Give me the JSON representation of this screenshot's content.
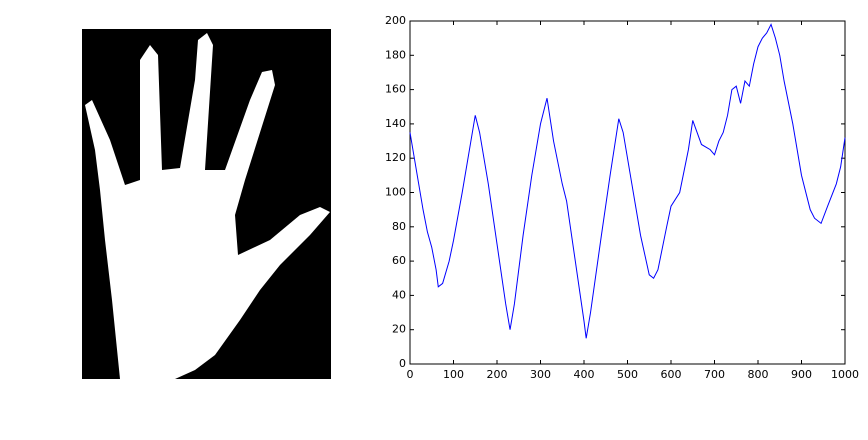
{
  "chart_data": {
    "type": "line",
    "x": [
      0,
      10,
      20,
      30,
      40,
      50,
      60,
      65,
      75,
      90,
      100,
      120,
      140,
      150,
      160,
      180,
      200,
      220,
      230,
      240,
      260,
      280,
      300,
      315,
      330,
      350,
      360,
      380,
      400,
      405,
      415,
      440,
      460,
      480,
      490,
      510,
      530,
      550,
      560,
      570,
      590,
      600,
      620,
      640,
      650,
      660,
      670,
      690,
      700,
      710,
      720,
      730,
      740,
      750,
      760,
      770,
      780,
      790,
      800,
      810,
      820,
      830,
      840,
      850,
      860,
      880,
      900,
      920,
      930,
      945,
      960,
      980,
      990,
      1000
    ],
    "values": [
      135,
      120,
      105,
      90,
      77,
      68,
      55,
      45,
      47,
      60,
      72,
      100,
      130,
      145,
      135,
      105,
      70,
      35,
      20,
      35,
      75,
      110,
      140,
      155,
      130,
      105,
      95,
      60,
      25,
      15,
      30,
      75,
      110,
      143,
      135,
      105,
      75,
      52,
      50,
      55,
      80,
      92,
      100,
      125,
      142,
      135,
      128,
      125,
      122,
      130,
      135,
      145,
      160,
      162,
      152,
      165,
      162,
      175,
      185,
      190,
      193,
      198,
      190,
      180,
      165,
      140,
      110,
      90,
      85,
      82,
      92,
      105,
      115,
      132
    ],
    "color": "#0000ff",
    "xlim": [
      0,
      1000
    ],
    "xticks": [
      0,
      100,
      200,
      300,
      400,
      500,
      600,
      700,
      800,
      900,
      1000
    ],
    "ylim": [
      0,
      200
    ],
    "yticks": [
      0,
      20,
      40,
      60,
      80,
      100,
      120,
      140,
      160,
      180,
      200
    ]
  }
}
